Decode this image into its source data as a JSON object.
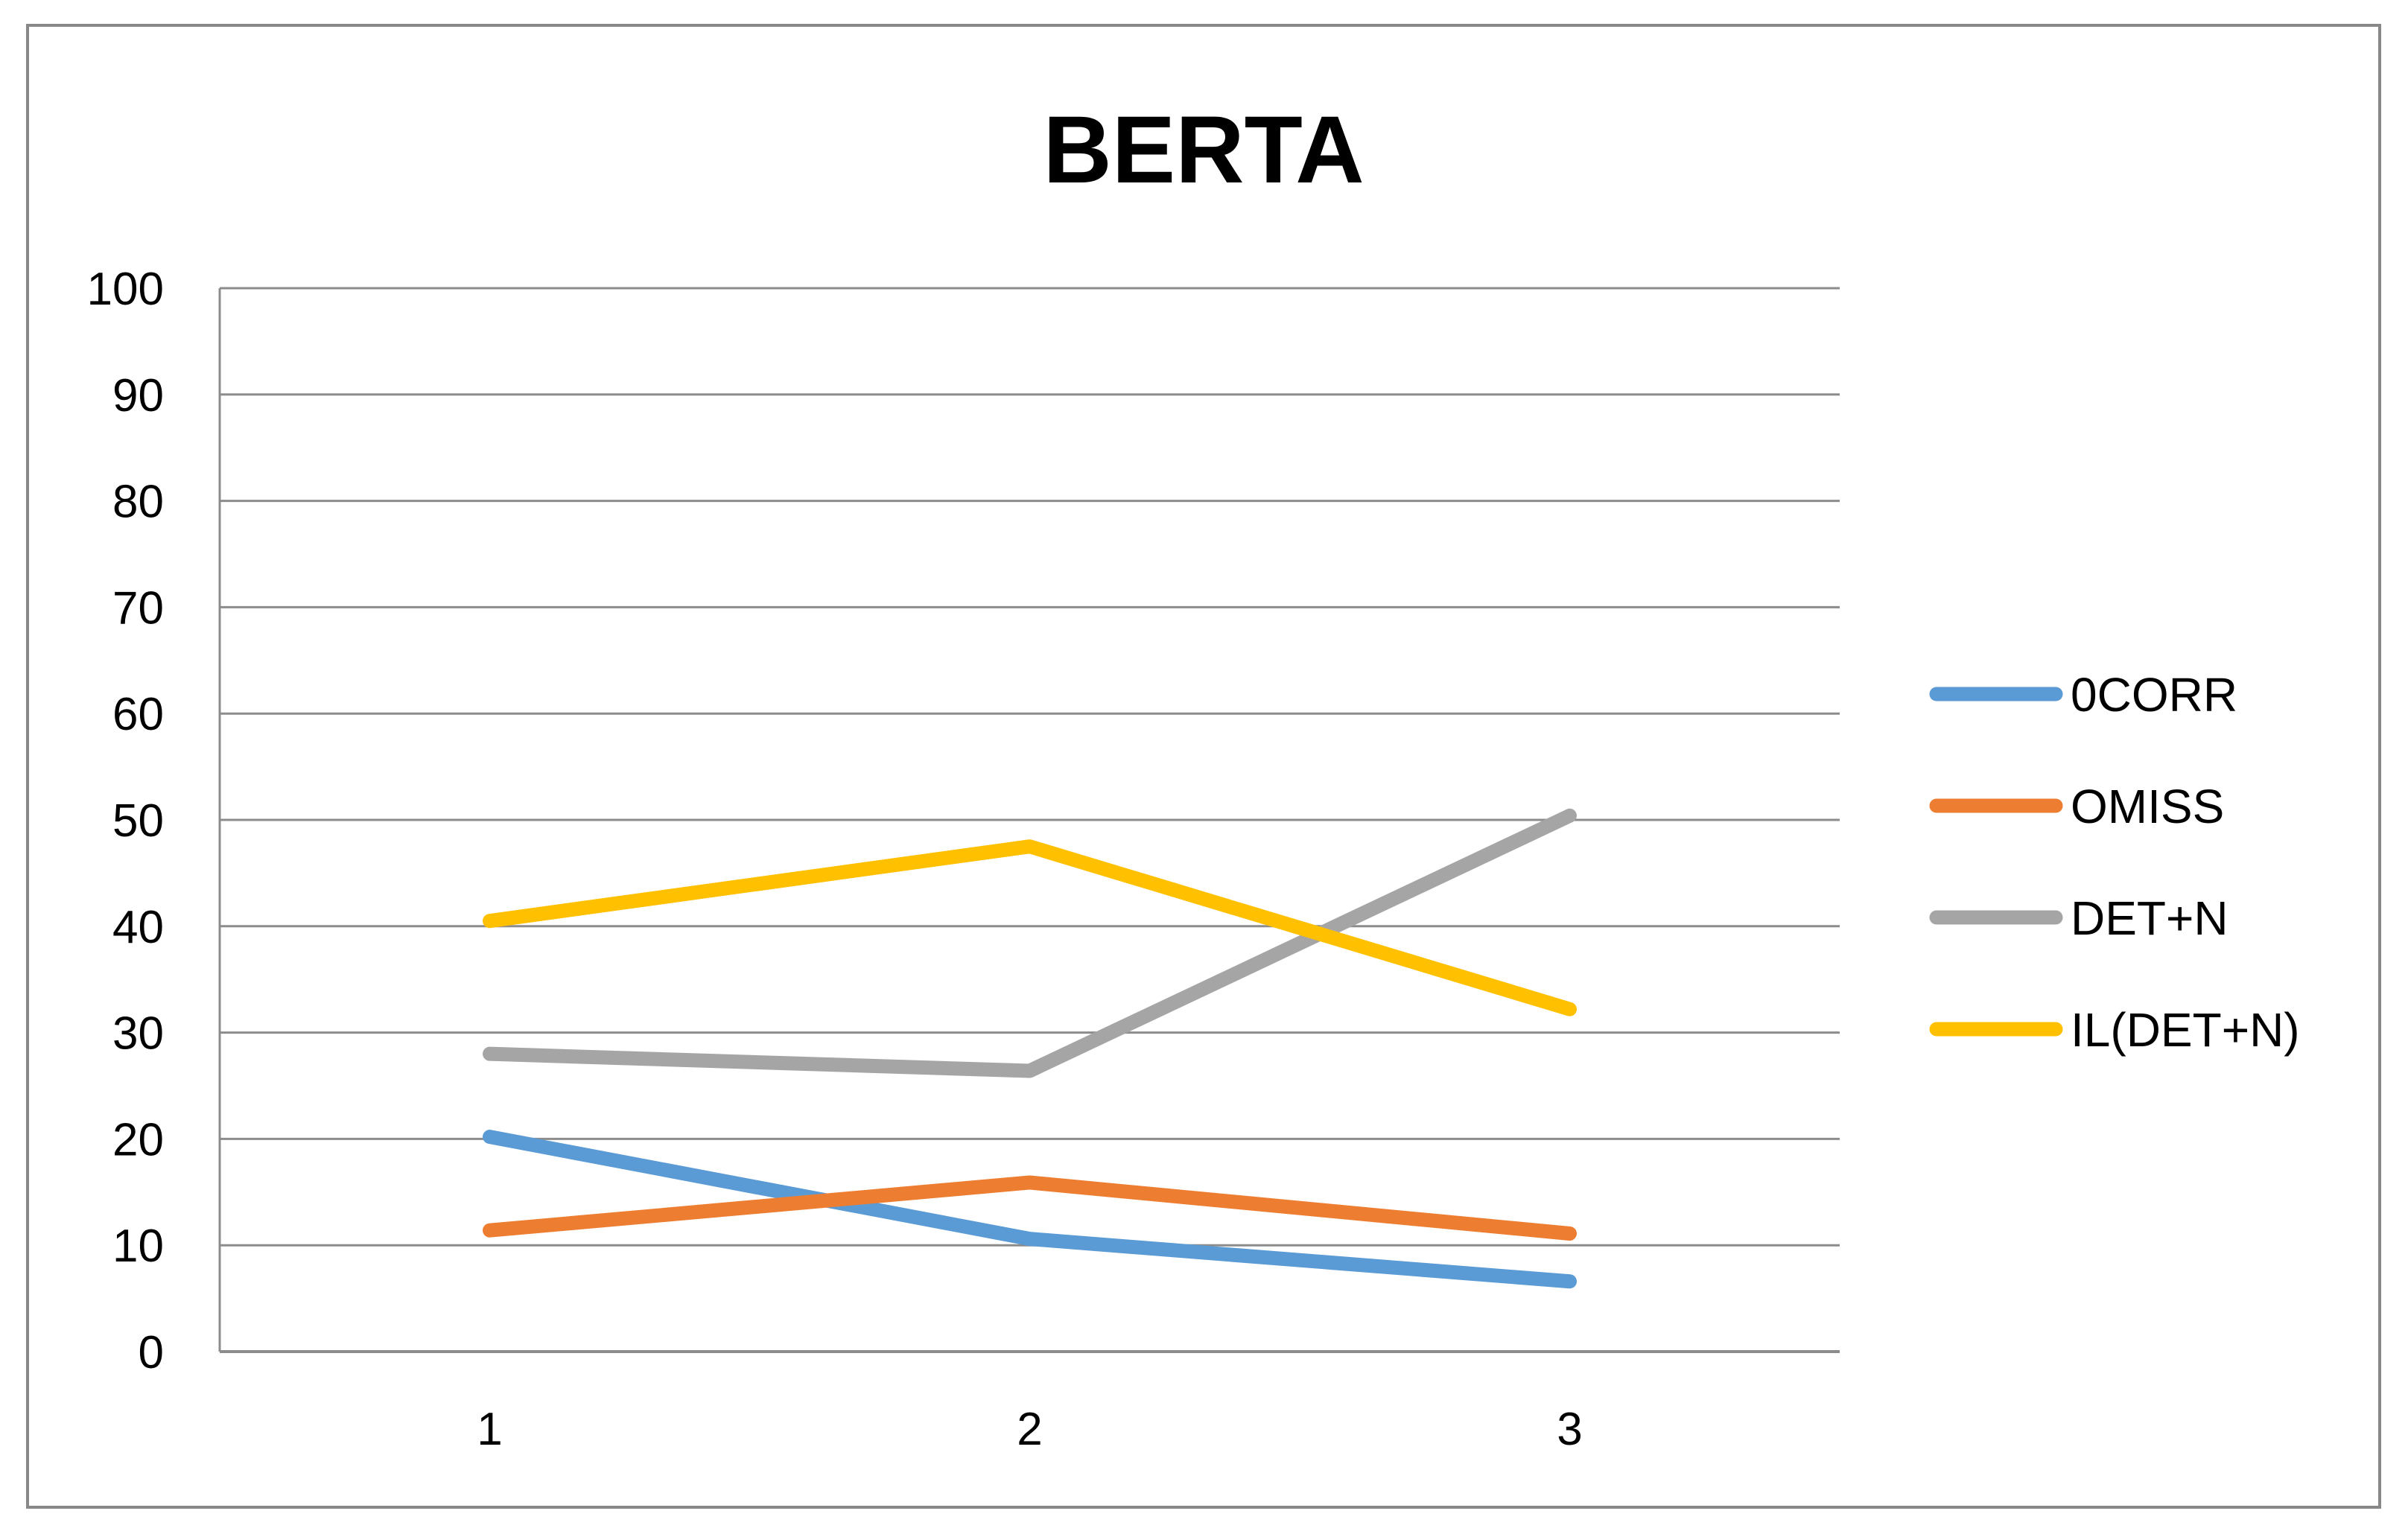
{
  "chart_data": {
    "type": "line",
    "title": "BERTA",
    "xlabel": "",
    "ylabel": "",
    "categories": [
      "1",
      "2",
      "3"
    ],
    "ylim": [
      0,
      100
    ],
    "yticks": [
      "0",
      "10",
      "20",
      "30",
      "40",
      "50",
      "60",
      "70",
      "80",
      "90",
      "100"
    ],
    "grid": true,
    "legend_position": "right",
    "series": [
      {
        "name": "0CORR",
        "color": "#5B9BD5",
        "values": [
          20.2,
          10.6,
          6.6
        ]
      },
      {
        "name": "OMISS",
        "color": "#ED7D31",
        "values": [
          11.4,
          15.9,
          11.1
        ]
      },
      {
        "name": "DET+N",
        "color": "#A5A5A5",
        "values": [
          28.0,
          26.4,
          50.4
        ]
      },
      {
        "name": "IL(DET+N)",
        "color": "#FFC000",
        "values": [
          40.5,
          47.5,
          32.2
        ]
      }
    ]
  }
}
